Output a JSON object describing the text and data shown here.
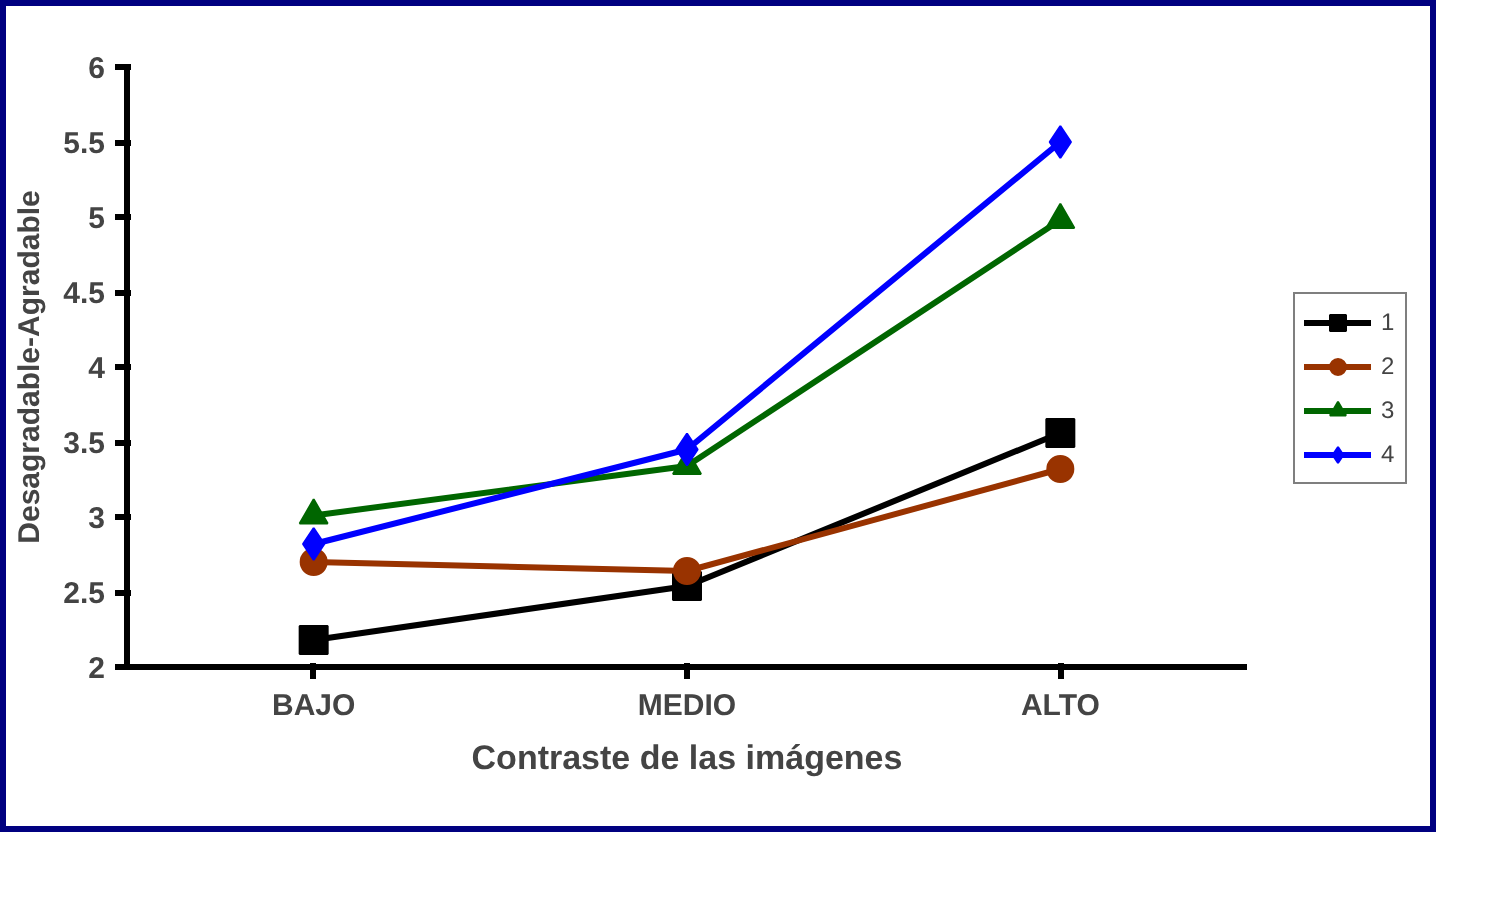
{
  "chart_data": {
    "type": "line",
    "xlabel": "Contraste de las imágenes",
    "ylabel": "Desagradable-Agradable",
    "categories": [
      "BAJO",
      "MEDIO",
      "ALTO"
    ],
    "ylim": [
      2,
      6
    ],
    "yticks": [
      2,
      2.5,
      3,
      3.5,
      4,
      4.5,
      5,
      5.5,
      6
    ],
    "grid": false,
    "legend": "right",
    "series": [
      {
        "name": "1",
        "color": "#000000",
        "marker": "square",
        "values": [
          2.18,
          2.54,
          3.56
        ]
      },
      {
        "name": "2",
        "color": "#993300",
        "marker": "circle",
        "values": [
          2.7,
          2.64,
          3.32
        ]
      },
      {
        "name": "3",
        "color": "#006600",
        "marker": "triangle",
        "values": [
          3.01,
          3.34,
          4.98
        ]
      },
      {
        "name": "4",
        "color": "#0000ff",
        "marker": "diamond",
        "values": [
          2.82,
          3.45,
          5.5
        ]
      }
    ]
  }
}
